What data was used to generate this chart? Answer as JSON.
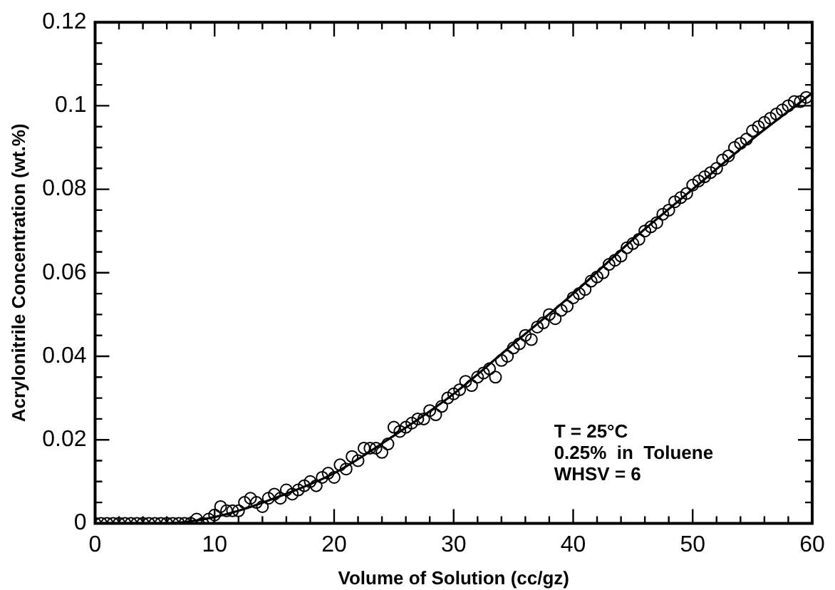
{
  "chart_data": {
    "type": "scatter",
    "xlabel": "Volume of Solution (cc/gz)",
    "ylabel": "Acrylonitrile Concentration (wt.%)",
    "xlim": [
      0,
      60
    ],
    "ylim": [
      0,
      0.12
    ],
    "xticks": [
      0,
      {
        "value": 2,
        "label": null
      },
      {
        "value": 4,
        "label": null
      },
      {
        "value": 6,
        "label": null
      },
      {
        "value": 8,
        "label": null
      },
      10,
      {
        "value": 12,
        "label": null
      },
      {
        "value": 14,
        "label": null
      },
      {
        "value": 16,
        "label": null
      },
      {
        "value": 18,
        "label": null
      },
      20,
      {
        "value": 22,
        "label": null
      },
      {
        "value": 24,
        "label": null
      },
      {
        "value": 26,
        "label": null
      },
      {
        "value": 28,
        "label": null
      },
      30,
      {
        "value": 32,
        "label": null
      },
      {
        "value": 34,
        "label": null
      },
      {
        "value": 36,
        "label": null
      },
      {
        "value": 38,
        "label": null
      },
      40,
      {
        "value": 42,
        "label": null
      },
      {
        "value": 44,
        "label": null
      },
      {
        "value": 46,
        "label": null
      },
      {
        "value": 48,
        "label": null
      },
      50,
      {
        "value": 52,
        "label": null
      },
      {
        "value": 54,
        "label": null
      },
      {
        "value": 56,
        "label": null
      },
      {
        "value": 58,
        "label": null
      },
      60
    ],
    "yticks": [
      0,
      {
        "value": 0.005,
        "label": null
      },
      {
        "value": 0.01,
        "label": null
      },
      {
        "value": 0.015,
        "label": null
      },
      0.02,
      {
        "value": 0.025,
        "label": null
      },
      {
        "value": 0.03,
        "label": null
      },
      {
        "value": 0.035,
        "label": null
      },
      0.04,
      {
        "value": 0.045,
        "label": null
      },
      {
        "value": 0.05,
        "label": null
      },
      {
        "value": 0.055,
        "label": null
      },
      0.06,
      {
        "value": 0.065,
        "label": null
      },
      {
        "value": 0.07,
        "label": null
      },
      {
        "value": 0.075,
        "label": null
      },
      0.08,
      {
        "value": 0.085,
        "label": null
      },
      {
        "value": 0.09,
        "label": null
      },
      {
        "value": 0.095,
        "label": null
      },
      0.1,
      {
        "value": 0.105,
        "label": null
      },
      {
        "value": 0.11,
        "label": null
      },
      {
        "value": 0.115,
        "label": null
      },
      0.12
    ],
    "grid": false,
    "legend": false,
    "marker": "circle",
    "annotations": [
      "T = 25°C",
      "0.25%  in  Toluene",
      "WHSV = 6"
    ],
    "series": [
      {
        "color": "#000000",
        "x": [
          0,
          0.5,
          1,
          1.5,
          2,
          2.5,
          3,
          3.5,
          4,
          4.5,
          5,
          5.5,
          6,
          6.5,
          7,
          7.5,
          8,
          8.5,
          9,
          9.5,
          10,
          10.5,
          11,
          11.5,
          12,
          12.5,
          13,
          13.5,
          14,
          14.5,
          15,
          15.5,
          16,
          16.5,
          17,
          17.5,
          18,
          18.5,
          19,
          19.5,
          20,
          20.5,
          21,
          21.5,
          22,
          22.5,
          23,
          23.5,
          24,
          24.5,
          25,
          25.5,
          26,
          26.5,
          27,
          27.5,
          28,
          28.5,
          29,
          29.5,
          30,
          30.5,
          31,
          31.5,
          32,
          32.5,
          33,
          33.5,
          34,
          34.5,
          35,
          35.5,
          36,
          36.5,
          37,
          37.5,
          38,
          38.5,
          39,
          39.5,
          40,
          40.5,
          41,
          41.5,
          42,
          42.5,
          43,
          43.5,
          44,
          44.5,
          45,
          45.5,
          46,
          46.5,
          47,
          47.5,
          48,
          48.5,
          49,
          49.5,
          50,
          50.5,
          51,
          51.5,
          52,
          52.5,
          53,
          53.5,
          54,
          54.5,
          55,
          55.5,
          56,
          56.5,
          57,
          57.5,
          58,
          58.5,
          59,
          59.5
        ],
        "values": [
          0,
          0,
          0,
          0,
          0,
          0,
          0,
          0,
          0,
          0,
          0,
          0,
          0,
          0,
          0,
          0,
          0,
          0.001,
          0,
          0.001,
          0.002,
          0.004,
          0.003,
          0.003,
          0.003,
          0.005,
          0.006,
          0.005,
          0.004,
          0.006,
          0.007,
          0.006,
          0.008,
          0.007,
          0.008,
          0.009,
          0.01,
          0.009,
          0.011,
          0.012,
          0.011,
          0.014,
          0.013,
          0.016,
          0.015,
          0.018,
          0.018,
          0.018,
          0.017,
          0.019,
          0.023,
          0.022,
          0.023,
          0.024,
          0.025,
          0.025,
          0.027,
          0.026,
          0.028,
          0.03,
          0.031,
          0.032,
          0.034,
          0.033,
          0.035,
          0.036,
          0.037,
          0.035,
          0.039,
          0.04,
          0.042,
          0.043,
          0.045,
          0.044,
          0.047,
          0.048,
          0.05,
          0.049,
          0.051,
          0.052,
          0.054,
          0.055,
          0.056,
          0.058,
          0.059,
          0.06,
          0.062,
          0.063,
          0.064,
          0.066,
          0.067,
          0.068,
          0.07,
          0.071,
          0.072,
          0.074,
          0.075,
          0.077,
          0.078,
          0.079,
          0.081,
          0.082,
          0.083,
          0.084,
          0.085,
          0.087,
          0.088,
          0.09,
          0.091,
          0.092,
          0.094,
          0.095,
          0.096,
          0.097,
          0.098,
          0.099,
          0.1,
          0.101,
          0.101,
          0.102
        ]
      },
      {
        "type": "line",
        "color": "#000000",
        "marker": "none",
        "x": [
          0,
          6,
          8,
          10,
          12,
          15,
          20,
          25,
          30,
          35,
          40,
          45,
          50,
          55,
          60
        ],
        "values": [
          0,
          0,
          0.0005,
          0.0015,
          0.003,
          0.006,
          0.012,
          0.021,
          0.031,
          0.043,
          0.055,
          0.068,
          0.08,
          0.092,
          0.103
        ]
      }
    ]
  }
}
